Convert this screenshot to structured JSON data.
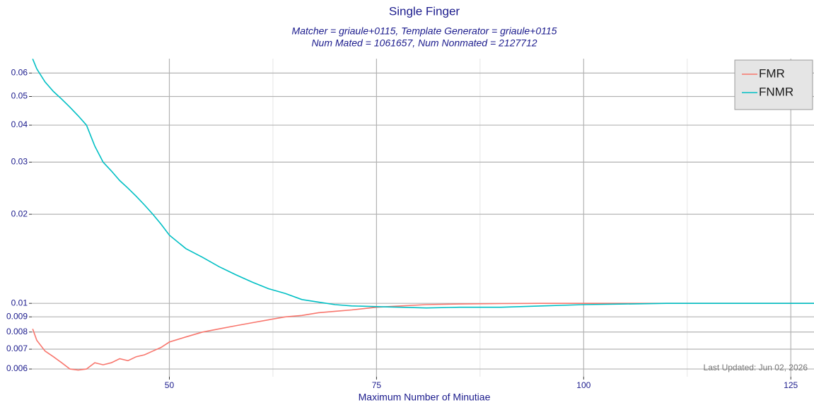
{
  "chart_data": {
    "type": "line",
    "title": "Single Finger",
    "subtitle": [
      "Matcher = griaule+0115, Template Generator = griaule+0115",
      "Num Mated = 1061657, Num Nonmated = 2127712"
    ],
    "x_label": "Maximum Number of Minutiae",
    "annotation": "Last Updated: Jun 02, 2026",
    "x": [
      33.5,
      34,
      35,
      36,
      37,
      38,
      39,
      40,
      41,
      42,
      43,
      44,
      45,
      46,
      47,
      48,
      49,
      50,
      52,
      54,
      56,
      58,
      60,
      62,
      64,
      66,
      68,
      70,
      72,
      75,
      78,
      81,
      85,
      90,
      95,
      100,
      105,
      110,
      115,
      120,
      125,
      127.8
    ],
    "series": [
      {
        "name": "FMR",
        "color": "#f8766d",
        "values": [
          0.0082,
          0.0075,
          0.0069,
          0.0066,
          0.0063,
          0.006,
          0.00595,
          0.006,
          0.0063,
          0.0062,
          0.0063,
          0.0065,
          0.0064,
          0.0066,
          0.0067,
          0.0069,
          0.0071,
          0.0074,
          0.0077,
          0.008,
          0.0082,
          0.0084,
          0.0086,
          0.0088,
          0.009,
          0.0091,
          0.0093,
          0.0094,
          0.0095,
          0.0097,
          0.0098,
          0.0099,
          0.00995,
          0.00998,
          0.01,
          0.01,
          0.01,
          0.01,
          0.01,
          0.01,
          0.01,
          0.01
        ]
      },
      {
        "name": "FNMR",
        "color": "#00bfc4",
        "values": [
          0.067,
          0.062,
          0.056,
          0.052,
          0.049,
          0.046,
          0.043,
          0.04,
          0.034,
          0.03,
          0.028,
          0.026,
          0.0245,
          0.023,
          0.0215,
          0.02,
          0.0185,
          0.017,
          0.0153,
          0.0143,
          0.0133,
          0.0125,
          0.0118,
          0.0112,
          0.0108,
          0.0103,
          0.0101,
          0.0099,
          0.0098,
          0.00975,
          0.0097,
          0.00965,
          0.0097,
          0.0097,
          0.0098,
          0.0099,
          0.00995,
          0.01,
          0.01,
          0.01,
          0.01,
          0.01
        ]
      }
    ],
    "xlim": [
      33.4,
      127.8
    ],
    "xticks": [
      50,
      75,
      100,
      125
    ],
    "xminor": [
      62.5,
      87.5,
      112.5
    ],
    "ylim": [
      0.00565,
      0.0671
    ],
    "ylog": true,
    "yticks": [
      0.006,
      0.007,
      0.008,
      0.009,
      0.01,
      0.02,
      0.03,
      0.04,
      0.05,
      0.06
    ],
    "grid": true,
    "legend": "top-right"
  }
}
